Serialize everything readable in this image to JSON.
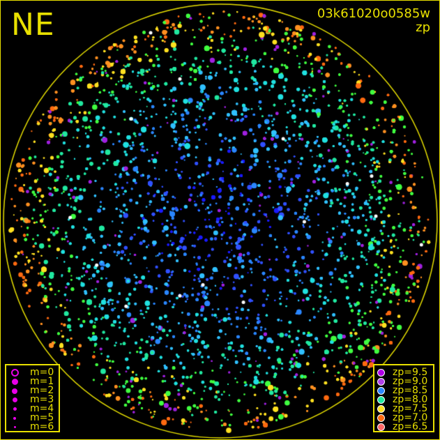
{
  "header": {
    "direction": "NE",
    "title": "03k61020o0585w",
    "subtitle": "zp"
  },
  "chart_data": {
    "type": "scatter",
    "title": "03k61020o0585w",
    "color_variable": "zp",
    "size_variable": "m",
    "size_legend": [
      {
        "label": "m=0",
        "mag": 0
      },
      {
        "label": "m=1",
        "mag": 1
      },
      {
        "label": "m=2",
        "mag": 2
      },
      {
        "label": "m=3",
        "mag": 3
      },
      {
        "label": "m=4",
        "mag": 4
      },
      {
        "label": "m=5",
        "mag": 5
      },
      {
        "label": "m=6",
        "mag": 6
      }
    ],
    "color_legend": [
      {
        "label": "zp=9.5",
        "zp": 9.5,
        "color": "#b000e8"
      },
      {
        "label": "zp=9.0",
        "zp": 9.0,
        "color": "#b040e8"
      },
      {
        "label": "zp=8.5",
        "zp": 8.5,
        "color": "#2a86ff"
      },
      {
        "label": "zp=8.0",
        "zp": 8.0,
        "color": "#20e8a0"
      },
      {
        "label": "zp=7.5",
        "zp": 7.5,
        "color": "#ffe020"
      },
      {
        "label": "zp=7.0",
        "zp": 7.0,
        "color": "#ff6a10"
      },
      {
        "label": "zp=6.5",
        "zp": 6.5,
        "color": "#ff6868"
      }
    ],
    "legend_placement": [
      "bottom-left",
      "bottom-right"
    ],
    "horizon_color": "#e8e000",
    "marker_color_size_legend": "#e800e8"
  }
}
